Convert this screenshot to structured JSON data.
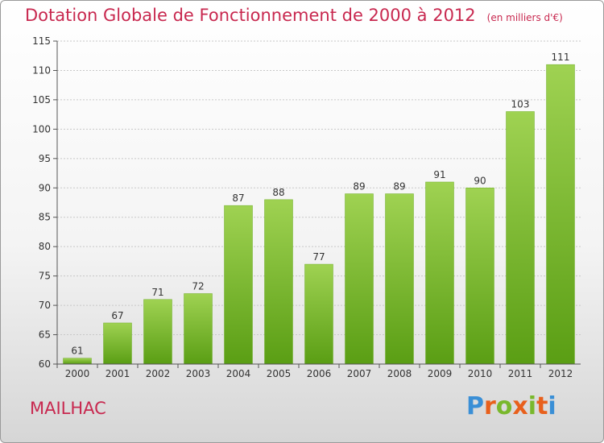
{
  "title": "Dotation Globale de Fonctionnement de 2000 à 2012",
  "unit": "(en milliers d'€)",
  "commune": "MAILHAC",
  "brand": {
    "text": "Proxiti",
    "letter_colors": [
      "#3a8fd6",
      "#e8601c",
      "#79b82c",
      "#e8601c",
      "#79b82c",
      "#e8601c",
      "#3a8fd6"
    ]
  },
  "colors": {
    "bar_top": "#9fd252",
    "bar_bottom": "#5a9e14",
    "axis": "#555555",
    "grid": "#c8c8c8"
  },
  "chart_data": {
    "type": "bar",
    "title": "Dotation Globale de Fonctionnement de 2000 à 2012",
    "subtitle": "(en milliers d'€)",
    "categories": [
      "2000",
      "2001",
      "2002",
      "2003",
      "2004",
      "2005",
      "2006",
      "2007",
      "2008",
      "2009",
      "2010",
      "2011",
      "2012"
    ],
    "values": [
      61,
      67,
      71,
      72,
      87,
      88,
      77,
      89,
      89,
      91,
      90,
      103,
      111
    ],
    "ylim": [
      60,
      115
    ],
    "yticks": [
      60,
      65,
      70,
      75,
      80,
      85,
      90,
      95,
      100,
      105,
      110,
      115
    ],
    "xlabel": "",
    "ylabel": "",
    "grid": true,
    "legend": "none"
  }
}
